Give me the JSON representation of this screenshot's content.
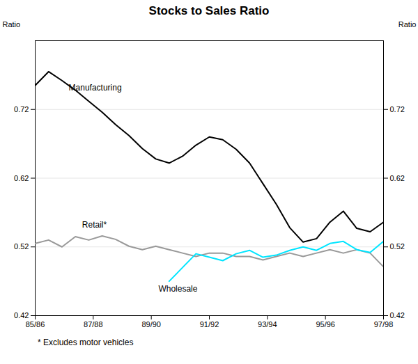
{
  "chart_data": {
    "type": "line",
    "title": "Stocks to Sales Ratio",
    "footnote": "* Excludes motor vehicles",
    "ylabel": "Ratio",
    "y2label": "Ratio",
    "x": [
      0,
      1,
      2,
      3,
      4,
      5,
      6,
      7,
      8,
      9,
      10,
      11,
      12,
      13,
      14,
      15,
      16,
      17,
      18,
      19,
      20,
      21,
      22,
      23,
      24,
      25,
      26
    ],
    "xlim": [
      0,
      26
    ],
    "xticks": [
      {
        "value": 0,
        "label": "85/86"
      },
      {
        "value": 4.333333333333333,
        "label": "87/88"
      },
      {
        "value": 8.666666666666666,
        "label": "89/90"
      },
      {
        "value": 13,
        "label": "91/92"
      },
      {
        "value": 17.333333333333332,
        "label": "93/94"
      },
      {
        "value": 21.666666666666668,
        "label": "95/96"
      },
      {
        "value": 26,
        "label": "97/98"
      }
    ],
    "ylim": [
      0.42,
      0.82
    ],
    "yticks": [
      0.42,
      0.52,
      0.62,
      0.72
    ],
    "grid": true,
    "series": [
      {
        "name": "Manufacturing",
        "color": "#000000",
        "values": [
          0.755,
          0.775,
          0.762,
          0.748,
          0.732,
          0.716,
          0.698,
          0.682,
          0.663,
          0.648,
          0.642,
          0.652,
          0.668,
          0.68,
          0.676,
          0.662,
          0.642,
          0.612,
          0.582,
          0.548,
          0.527,
          0.532,
          0.556,
          0.572,
          0.547,
          0.542,
          0.556
        ]
      },
      {
        "name": "Retail*",
        "color": "#999999",
        "values": [
          0.525,
          0.53,
          0.52,
          0.535,
          0.53,
          0.536,
          0.531,
          0.521,
          0.516,
          0.521,
          0.516,
          0.511,
          0.506,
          0.511,
          0.511,
          0.506,
          0.506,
          0.501,
          0.506,
          0.511,
          0.506,
          0.511,
          0.516,
          0.511,
          0.516,
          0.511,
          0.491
        ]
      },
      {
        "name": "Wholesale",
        "color": "#00e5ff",
        "values": [
          null,
          null,
          null,
          null,
          null,
          null,
          null,
          null,
          null,
          null,
          0.47,
          0.49,
          0.51,
          0.505,
          0.5,
          0.51,
          0.515,
          0.505,
          0.508,
          0.515,
          0.52,
          0.515,
          0.525,
          0.528,
          0.516,
          0.512,
          0.528
        ]
      }
    ],
    "annotations": [
      {
        "text": "Manufacturing",
        "x": 2.5,
        "y": 0.748
      },
      {
        "text": "Retail*",
        "x": 3.5,
        "y": 0.548
      },
      {
        "text": "Wholesale",
        "x": 9.2,
        "y": 0.455
      }
    ]
  }
}
